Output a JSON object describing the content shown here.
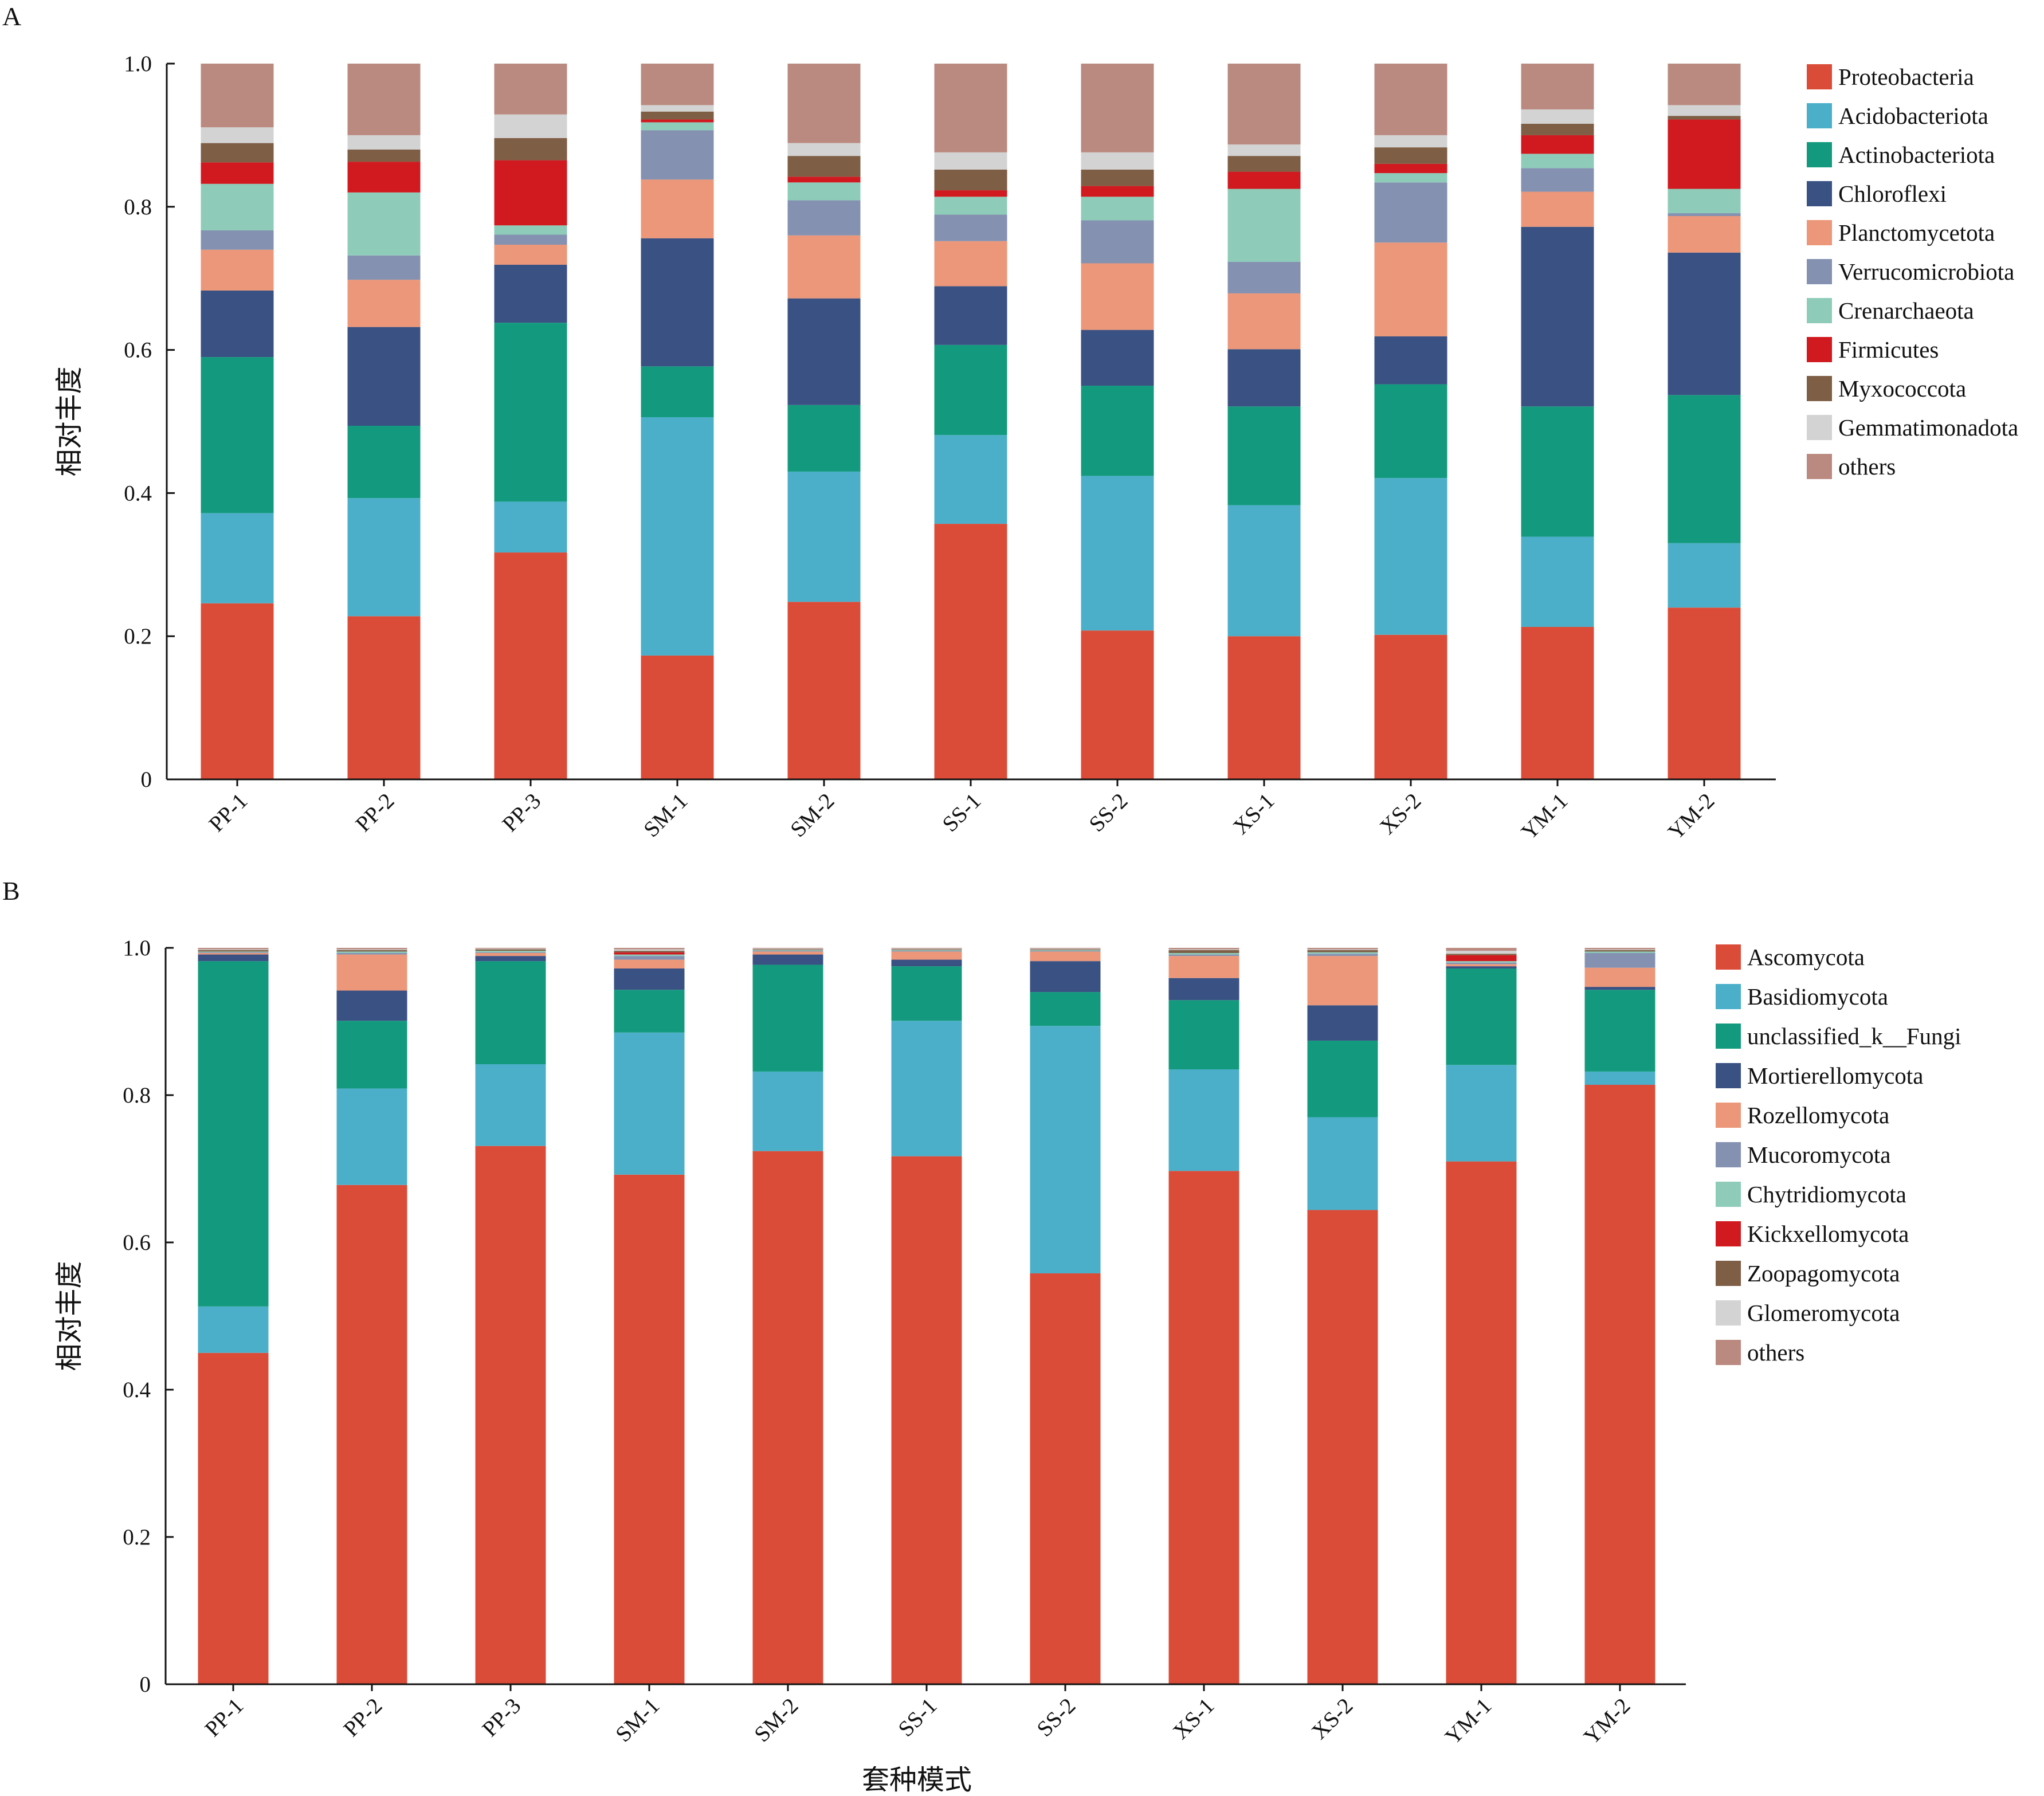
{
  "chart_data": [
    {
      "type": "bar",
      "stacked": true,
      "panel": "A",
      "title": "",
      "xlabel": "",
      "ylabel": "相对丰度",
      "ylim": [
        0,
        1.0
      ],
      "yticks": [
        "0",
        "0.2",
        "0.4",
        "0.6",
        "0.8",
        "1.0"
      ],
      "legend_position": "right",
      "categories": [
        "PP-1",
        "PP-2",
        "PP-3",
        "SM-1",
        "SM-2",
        "SS-1",
        "SS-2",
        "XS-1",
        "XS-2",
        "YM-1",
        "YM-2"
      ],
      "series": [
        {
          "name": "Proteobacteria",
          "color": "#DB4C38",
          "values": [
            0.246,
            0.228,
            0.317,
            0.173,
            0.248,
            0.357,
            0.208,
            0.2,
            0.202,
            0.213,
            0.24
          ]
        },
        {
          "name": "Acidobacteriota",
          "color": "#4BAFC9",
          "values": [
            0.126,
            0.165,
            0.071,
            0.333,
            0.182,
            0.124,
            0.216,
            0.183,
            0.219,
            0.126,
            0.09
          ]
        },
        {
          "name": "Actinobacteriota",
          "color": "#139A7E",
          "values": [
            0.218,
            0.101,
            0.25,
            0.071,
            0.093,
            0.126,
            0.126,
            0.138,
            0.131,
            0.182,
            0.207
          ]
        },
        {
          "name": "Chloroflexi",
          "color": "#3A5183",
          "values": [
            0.093,
            0.138,
            0.081,
            0.179,
            0.149,
            0.082,
            0.078,
            0.08,
            0.067,
            0.251,
            0.199
          ]
        },
        {
          "name": "Planctomycetota",
          "color": "#EC9779",
          "values": [
            0.057,
            0.066,
            0.028,
            0.082,
            0.088,
            0.063,
            0.093,
            0.078,
            0.131,
            0.049,
            0.051
          ]
        },
        {
          "name": "Verrucomicrobiota",
          "color": "#8491B1",
          "values": [
            0.027,
            0.034,
            0.014,
            0.069,
            0.049,
            0.037,
            0.06,
            0.044,
            0.084,
            0.033,
            0.004
          ]
        },
        {
          "name": "Crenarchaeota",
          "color": "#8ECCB9",
          "values": [
            0.065,
            0.088,
            0.013,
            0.011,
            0.025,
            0.025,
            0.033,
            0.102,
            0.013,
            0.02,
            0.034
          ]
        },
        {
          "name": "Firmicutes",
          "color": "#D01A1F",
          "values": [
            0.03,
            0.043,
            0.091,
            0.004,
            0.008,
            0.009,
            0.015,
            0.024,
            0.013,
            0.026,
            0.097
          ]
        },
        {
          "name": "Myxococcota",
          "color": "#7E5E45",
          "values": [
            0.027,
            0.017,
            0.031,
            0.011,
            0.029,
            0.029,
            0.023,
            0.022,
            0.023,
            0.016,
            0.005
          ]
        },
        {
          "name": "Gemmatimonadota",
          "color": "#D3D3D3",
          "values": [
            0.022,
            0.02,
            0.033,
            0.009,
            0.018,
            0.024,
            0.024,
            0.016,
            0.017,
            0.02,
            0.015
          ]
        },
        {
          "name": "others",
          "color": "#BA8A80",
          "values": [
            0.089,
            0.1,
            0.071,
            0.058,
            0.111,
            0.124,
            0.124,
            0.113,
            0.1,
            0.064,
            0.058
          ]
        }
      ]
    },
    {
      "type": "bar",
      "stacked": true,
      "panel": "B",
      "title": "",
      "xlabel": "套种模式",
      "ylabel": "相对丰度",
      "ylim": [
        0,
        1.0
      ],
      "yticks": [
        "0",
        "0.2",
        "0.4",
        "0.6",
        "0.8",
        "1.0"
      ],
      "legend_position": "right",
      "categories": [
        "PP-1",
        "PP-2",
        "PP-3",
        "SM-1",
        "SM-2",
        "SS-1",
        "SS-2",
        "XS-1",
        "XS-2",
        "YM-1",
        "YM-2"
      ],
      "series": [
        {
          "name": "Ascomycota",
          "color": "#DB4C38",
          "values": [
            0.45,
            0.678,
            0.731,
            0.692,
            0.724,
            0.717,
            0.558,
            0.697,
            0.644,
            0.71,
            0.814
          ]
        },
        {
          "name": "Basidiomycota",
          "color": "#4BAFC9",
          "values": [
            0.063,
            0.131,
            0.111,
            0.193,
            0.108,
            0.184,
            0.336,
            0.138,
            0.126,
            0.131,
            0.018
          ]
        },
        {
          "name": "unclassified_k__Fungi",
          "color": "#139A7E",
          "values": [
            0.469,
            0.092,
            0.14,
            0.058,
            0.145,
            0.074,
            0.046,
            0.094,
            0.104,
            0.131,
            0.111
          ]
        },
        {
          "name": "Mortierellomycota",
          "color": "#3A5183",
          "values": [
            0.009,
            0.041,
            0.007,
            0.029,
            0.014,
            0.009,
            0.042,
            0.03,
            0.048,
            0.003,
            0.004
          ]
        },
        {
          "name": "Rozellomycota",
          "color": "#EC9779",
          "values": [
            0.002,
            0.049,
            0.004,
            0.012,
            0.004,
            0.011,
            0.013,
            0.03,
            0.067,
            0.003,
            0.026
          ]
        },
        {
          "name": "Mucoromycota",
          "color": "#8491B1",
          "values": [
            0.001,
            0.002,
            0.001,
            0.005,
            0.001,
            0.001,
            0.001,
            0.002,
            0.003,
            0.002,
            0.02
          ]
        },
        {
          "name": "Chytridiomycota",
          "color": "#8ECCB9",
          "values": [
            0.001,
            0.002,
            0.002,
            0.002,
            0.001,
            0.001,
            0.001,
            0.002,
            0.002,
            0.002,
            0.002
          ]
        },
        {
          "name": "Kickxellomycota",
          "color": "#D01A1F",
          "values": [
            0.0,
            0.0,
            0.0,
            0.003,
            0.0,
            0.0,
            0.0,
            0.0,
            0.0,
            0.008,
            0.0
          ]
        },
        {
          "name": "Zoopagomycota",
          "color": "#7E5E45",
          "values": [
            0.002,
            0.002,
            0.002,
            0.002,
            0.001,
            0.001,
            0.001,
            0.004,
            0.003,
            0.002,
            0.002
          ]
        },
        {
          "name": "Glomeromycota",
          "color": "#D3D3D3",
          "values": [
            0.001,
            0.001,
            0.001,
            0.002,
            0.001,
            0.001,
            0.001,
            0.001,
            0.001,
            0.004,
            0.001
          ]
        },
        {
          "name": "others",
          "color": "#BA8A80",
          "values": [
            0.002,
            0.002,
            0.001,
            0.002,
            0.001,
            0.001,
            0.001,
            0.002,
            0.002,
            0.004,
            0.002
          ]
        }
      ]
    }
  ]
}
